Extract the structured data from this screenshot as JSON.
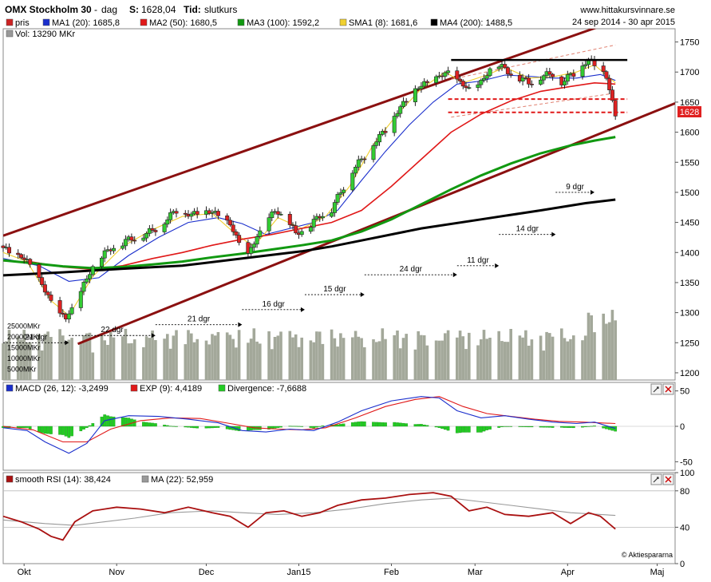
{
  "header": {
    "title": "OMX Stockholm 30",
    "interval_sep": "-",
    "interval": "dag",
    "last_label": "S:",
    "last_value": "1628,04",
    "time_label": "Tid:",
    "time_value": "slutkurs",
    "site": "www.hittakursvinnare.se",
    "date_range": "24 sep 2014 - 30 apr 2015"
  },
  "legend_main": [
    {
      "label": "pris",
      "color": "#cc2222"
    },
    {
      "label": "MA1 (20): 1685,8",
      "color": "#1a2ecc"
    },
    {
      "label": "MA2 (50): 1680,5",
      "color": "#e01818"
    },
    {
      "label": "MA3 (100): 1592,2",
      "color": "#119911"
    },
    {
      "label": "SMA1 (8): 1681,6",
      "color": "#f0d030"
    },
    {
      "label": "MA4 (200): 1488,5",
      "color": "#000000"
    }
  ],
  "legend_vol": {
    "label": "Vol: 13290 MKr",
    "color": "#999999"
  },
  "last_price_tag": "1628",
  "legend_macd": [
    {
      "label": "MACD (26, 12): -3,2499",
      "color": "#1a2ecc"
    },
    {
      "label": "EXP (9): 4,4189",
      "color": "#e01818"
    },
    {
      "label": "Divergence: -7,6688",
      "color": "#22cc22"
    }
  ],
  "legend_rsi": [
    {
      "label": "smooth RSI (14): 38,424",
      "color": "#aa1111"
    },
    {
      "label": "MA (22): 52,959",
      "color": "#999999"
    }
  ],
  "credit": "© Aktiespararna",
  "panel_button_icons": [
    "zoom-icon",
    "close-icon"
  ],
  "chart_data": {
    "type": "candlestick",
    "price_axis": {
      "ticks": [
        1200,
        1250,
        1300,
        1350,
        1400,
        1450,
        1500,
        1550,
        1600,
        1650,
        1700,
        1750
      ],
      "range": [
        1188,
        1772
      ]
    },
    "x_labels": [
      "Okt",
      "Nov",
      "Dec",
      "Jan15",
      "Feb",
      "Mar",
      "Apr",
      "Maj"
    ],
    "x_label_days": [
      7,
      38,
      68,
      99,
      130,
      158,
      189,
      219
    ],
    "x_range_days": [
      0,
      225
    ],
    "volume_axis": {
      "ticks": [
        "25000MKr",
        "20000MKr",
        "15000MKr",
        "10000MKr",
        "5000MKr"
      ],
      "values": [
        25000,
        20000,
        15000,
        10000,
        5000
      ],
      "max": 30000
    },
    "close_keypoints": [
      [
        0,
        1405
      ],
      [
        6,
        1392
      ],
      [
        10,
        1375
      ],
      [
        14,
        1335
      ],
      [
        18,
        1300
      ],
      [
        21,
        1290
      ],
      [
        23,
        1305
      ],
      [
        27,
        1345
      ],
      [
        31,
        1385
      ],
      [
        36,
        1405
      ],
      [
        42,
        1420
      ],
      [
        48,
        1430
      ],
      [
        53,
        1445
      ],
      [
        58,
        1470
      ],
      [
        63,
        1460
      ],
      [
        66,
        1470
      ],
      [
        70,
        1465
      ],
      [
        73,
        1460
      ],
      [
        76,
        1445
      ],
      [
        79,
        1415
      ],
      [
        82,
        1395
      ],
      [
        85,
        1425
      ],
      [
        88,
        1450
      ],
      [
        91,
        1468
      ],
      [
        95,
        1455
      ],
      [
        98,
        1430
      ],
      [
        102,
        1440
      ],
      [
        106,
        1460
      ],
      [
        110,
        1470
      ],
      [
        113,
        1500
      ],
      [
        117,
        1535
      ],
      [
        121,
        1560
      ],
      [
        125,
        1585
      ],
      [
        129,
        1610
      ],
      [
        133,
        1640
      ],
      [
        137,
        1665
      ],
      [
        141,
        1680
      ],
      [
        145,
        1688
      ],
      [
        149,
        1700
      ],
      [
        153,
        1680
      ],
      [
        156,
        1672
      ],
      [
        160,
        1680
      ],
      [
        163,
        1705
      ],
      [
        166,
        1710
      ],
      [
        169,
        1700
      ],
      [
        172,
        1690
      ],
      [
        176,
        1682
      ],
      [
        180,
        1690
      ],
      [
        184,
        1698
      ],
      [
        187,
        1680
      ],
      [
        190,
        1695
      ],
      [
        193,
        1705
      ],
      [
        196,
        1718
      ],
      [
        199,
        1712
      ],
      [
        202,
        1690
      ],
      [
        205,
        1628
      ]
    ],
    "ma_series": [
      {
        "name": "MA1 (20)",
        "color": "#1a2ecc",
        "points": [
          [
            0,
            1390
          ],
          [
            12,
            1378
          ],
          [
            22,
            1352
          ],
          [
            32,
            1358
          ],
          [
            42,
            1395
          ],
          [
            52,
            1425
          ],
          [
            62,
            1450
          ],
          [
            72,
            1458
          ],
          [
            80,
            1448
          ],
          [
            88,
            1430
          ],
          [
            96,
            1440
          ],
          [
            104,
            1450
          ],
          [
            112,
            1470
          ],
          [
            120,
            1520
          ],
          [
            128,
            1568
          ],
          [
            136,
            1612
          ],
          [
            144,
            1650
          ],
          [
            152,
            1680
          ],
          [
            160,
            1685
          ],
          [
            168,
            1695
          ],
          [
            176,
            1693
          ],
          [
            184,
            1690
          ],
          [
            192,
            1690
          ],
          [
            200,
            1696
          ],
          [
            205,
            1686
          ]
        ]
      },
      {
        "name": "SMA1 (8)",
        "color": "#f0d030",
        "points": [
          [
            0,
            1400
          ],
          [
            8,
            1385
          ],
          [
            16,
            1320
          ],
          [
            22,
            1295
          ],
          [
            30,
            1360
          ],
          [
            40,
            1410
          ],
          [
            50,
            1438
          ],
          [
            60,
            1460
          ],
          [
            70,
            1465
          ],
          [
            78,
            1430
          ],
          [
            84,
            1410
          ],
          [
            92,
            1458
          ],
          [
            100,
            1440
          ],
          [
            108,
            1460
          ],
          [
            116,
            1510
          ],
          [
            124,
            1580
          ],
          [
            132,
            1630
          ],
          [
            140,
            1672
          ],
          [
            148,
            1700
          ],
          [
            154,
            1682
          ],
          [
            162,
            1695
          ],
          [
            168,
            1708
          ],
          [
            176,
            1690
          ],
          [
            184,
            1692
          ],
          [
            192,
            1700
          ],
          [
            198,
            1712
          ],
          [
            205,
            1682
          ]
        ]
      },
      {
        "name": "MA2 (50)",
        "color": "#e01818",
        "points": [
          [
            0,
            1386
          ],
          [
            10,
            1384
          ],
          [
            20,
            1376
          ],
          [
            30,
            1372
          ],
          [
            40,
            1378
          ],
          [
            50,
            1390
          ],
          [
            60,
            1400
          ],
          [
            70,
            1412
          ],
          [
            80,
            1422
          ],
          [
            90,
            1430
          ],
          [
            100,
            1440
          ],
          [
            110,
            1450
          ],
          [
            120,
            1470
          ],
          [
            130,
            1510
          ],
          [
            140,
            1555
          ],
          [
            150,
            1600
          ],
          [
            160,
            1630
          ],
          [
            170,
            1652
          ],
          [
            180,
            1668
          ],
          [
            190,
            1676
          ],
          [
            198,
            1682
          ],
          [
            205,
            1680
          ]
        ]
      },
      {
        "name": "MA3 (100)",
        "color": "#119911",
        "points": [
          [
            0,
            1387
          ],
          [
            10,
            1382
          ],
          [
            20,
            1377
          ],
          [
            30,
            1374
          ],
          [
            40,
            1376
          ],
          [
            50,
            1380
          ],
          [
            60,
            1385
          ],
          [
            70,
            1392
          ],
          [
            80,
            1398
          ],
          [
            90,
            1405
          ],
          [
            100,
            1412
          ],
          [
            110,
            1420
          ],
          [
            120,
            1435
          ],
          [
            130,
            1455
          ],
          [
            140,
            1480
          ],
          [
            150,
            1505
          ],
          [
            160,
            1528
          ],
          [
            170,
            1548
          ],
          [
            180,
            1565
          ],
          [
            190,
            1578
          ],
          [
            198,
            1586
          ],
          [
            205,
            1592
          ]
        ]
      },
      {
        "name": "MA4 (200)",
        "color": "#000000",
        "points": [
          [
            0,
            1362
          ],
          [
            20,
            1367
          ],
          [
            40,
            1373
          ],
          [
            60,
            1378
          ],
          [
            80,
            1390
          ],
          [
            100,
            1402
          ],
          [
            110,
            1410
          ],
          [
            120,
            1420
          ],
          [
            140,
            1440
          ],
          [
            160,
            1455
          ],
          [
            180,
            1470
          ],
          [
            195,
            1482
          ],
          [
            205,
            1488
          ]
        ]
      }
    ],
    "trend_channel": {
      "upper": [
        [
          0,
          1428
        ],
        [
          205,
          1785
        ]
      ],
      "lower": [
        [
          25,
          1248
        ],
        [
          225,
          1648
        ]
      ]
    },
    "resistance": 1720,
    "support_levels": [
      1655,
      1633
    ],
    "cycle_annotations": [
      {
        "label": "21 dgr",
        "x0": 0,
        "x1": 22,
        "y": 1250
      },
      {
        "label": "22 dgr",
        "x0": 22,
        "x1": 51,
        "y": 1262
      },
      {
        "label": "21 dgr",
        "x0": 51,
        "x1": 80,
        "y": 1280
      },
      {
        "label": "16 dgr",
        "x0": 80,
        "x1": 101,
        "y": 1305
      },
      {
        "label": "15 dgr",
        "x0": 101,
        "x1": 121,
        "y": 1330
      },
      {
        "label": "24 dgr",
        "x0": 121,
        "x1": 152,
        "y": 1363
      },
      {
        "label": "11 dgr",
        "x0": 152,
        "x1": 166,
        "y": 1378
      },
      {
        "label": "14 dgr",
        "x0": 166,
        "x1": 185,
        "y": 1430
      },
      {
        "label": "9 dgr",
        "x0": 185,
        "x1": 198,
        "y": 1500
      }
    ],
    "macd_axis": {
      "ticks": [
        50,
        0,
        -50
      ],
      "range": [
        -62,
        62
      ]
    },
    "macd_series": {
      "macd": [
        [
          0,
          -2
        ],
        [
          8,
          -6
        ],
        [
          14,
          -22
        ],
        [
          22,
          -38
        ],
        [
          28,
          -24
        ],
        [
          34,
          8
        ],
        [
          42,
          15
        ],
        [
          52,
          14
        ],
        [
          62,
          10
        ],
        [
          72,
          5
        ],
        [
          80,
          -6
        ],
        [
          88,
          -8
        ],
        [
          96,
          -4
        ],
        [
          104,
          -6
        ],
        [
          112,
          6
        ],
        [
          120,
          22
        ],
        [
          130,
          36
        ],
        [
          140,
          42
        ],
        [
          146,
          40
        ],
        [
          152,
          22
        ],
        [
          160,
          12
        ],
        [
          168,
          15
        ],
        [
          176,
          10
        ],
        [
          184,
          6
        ],
        [
          192,
          4
        ],
        [
          198,
          6
        ],
        [
          205,
          -3
        ]
      ],
      "signal": [
        [
          0,
          0
        ],
        [
          10,
          -5
        ],
        [
          20,
          -22
        ],
        [
          28,
          -22
        ],
        [
          36,
          -4
        ],
        [
          46,
          8
        ],
        [
          56,
          12
        ],
        [
          66,
          11
        ],
        [
          76,
          4
        ],
        [
          84,
          -2
        ],
        [
          92,
          -4
        ],
        [
          100,
          -5
        ],
        [
          108,
          -2
        ],
        [
          118,
          12
        ],
        [
          128,
          28
        ],
        [
          138,
          38
        ],
        [
          146,
          42
        ],
        [
          154,
          28
        ],
        [
          162,
          18
        ],
        [
          170,
          14
        ],
        [
          178,
          10
        ],
        [
          186,
          7
        ],
        [
          194,
          6
        ],
        [
          205,
          4
        ]
      ]
    },
    "rsi_axis": {
      "ticks": [
        100,
        80,
        40,
        0
      ],
      "range": [
        0,
        100
      ]
    },
    "rsi_series": {
      "rsi": [
        [
          0,
          52
        ],
        [
          6,
          46
        ],
        [
          12,
          38
        ],
        [
          16,
          30
        ],
        [
          20,
          26
        ],
        [
          24,
          46
        ],
        [
          30,
          58
        ],
        [
          38,
          62
        ],
        [
          46,
          60
        ],
        [
          54,
          56
        ],
        [
          62,
          62
        ],
        [
          70,
          56
        ],
        [
          76,
          52
        ],
        [
          82,
          40
        ],
        [
          88,
          56
        ],
        [
          94,
          58
        ],
        [
          100,
          52
        ],
        [
          106,
          56
        ],
        [
          112,
          64
        ],
        [
          120,
          70
        ],
        [
          128,
          72
        ],
        [
          136,
          76
        ],
        [
          144,
          78
        ],
        [
          150,
          74
        ],
        [
          156,
          58
        ],
        [
          162,
          62
        ],
        [
          168,
          54
        ],
        [
          176,
          52
        ],
        [
          184,
          56
        ],
        [
          190,
          44
        ],
        [
          196,
          56
        ],
        [
          200,
          52
        ],
        [
          205,
          38
        ]
      ],
      "ma": [
        [
          0,
          48
        ],
        [
          14,
          44
        ],
        [
          24,
          42
        ],
        [
          34,
          46
        ],
        [
          44,
          50
        ],
        [
          56,
          56
        ],
        [
          70,
          58
        ],
        [
          80,
          56
        ],
        [
          92,
          54
        ],
        [
          104,
          56
        ],
        [
          116,
          60
        ],
        [
          128,
          66
        ],
        [
          140,
          70
        ],
        [
          150,
          72
        ],
        [
          160,
          68
        ],
        [
          170,
          64
        ],
        [
          180,
          60
        ],
        [
          190,
          56
        ],
        [
          200,
          54
        ],
        [
          205,
          53
        ]
      ]
    }
  }
}
